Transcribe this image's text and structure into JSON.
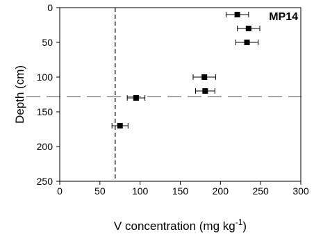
{
  "chart_data": {
    "type": "scatter",
    "title": "",
    "annotation": "MP14",
    "xlabel": "V concentration (mg kg",
    "xlabel_sup": "-1",
    "xlabel_close": ")",
    "ylabel": "Depth (cm)",
    "xlim": [
      0,
      300
    ],
    "ylim": [
      0,
      250
    ],
    "y_inverted": true,
    "x_ticks": [
      0,
      50,
      100,
      150,
      200,
      250,
      300
    ],
    "y_ticks": [
      0,
      50,
      100,
      150,
      200,
      250
    ],
    "grid": false,
    "points": [
      {
        "x": 221,
        "y": 10,
        "xerr": 14
      },
      {
        "x": 235,
        "y": 30,
        "xerr": 14
      },
      {
        "x": 233,
        "y": 50,
        "xerr": 14
      },
      {
        "x": 180,
        "y": 100,
        "xerr": 14
      },
      {
        "x": 181,
        "y": 120,
        "xerr": 12
      },
      {
        "x": 95,
        "y": 130,
        "xerr": 11
      },
      {
        "x": 75,
        "y": 170,
        "xerr": 10
      }
    ],
    "reference_lines": [
      {
        "orientation": "vertical",
        "x": 69,
        "style": "dashed"
      },
      {
        "orientation": "horizontal",
        "y": 128,
        "style": "long-dashed"
      }
    ],
    "colors": {
      "marker": "#000000",
      "vline": "#000000",
      "hline": "#888888"
    }
  }
}
